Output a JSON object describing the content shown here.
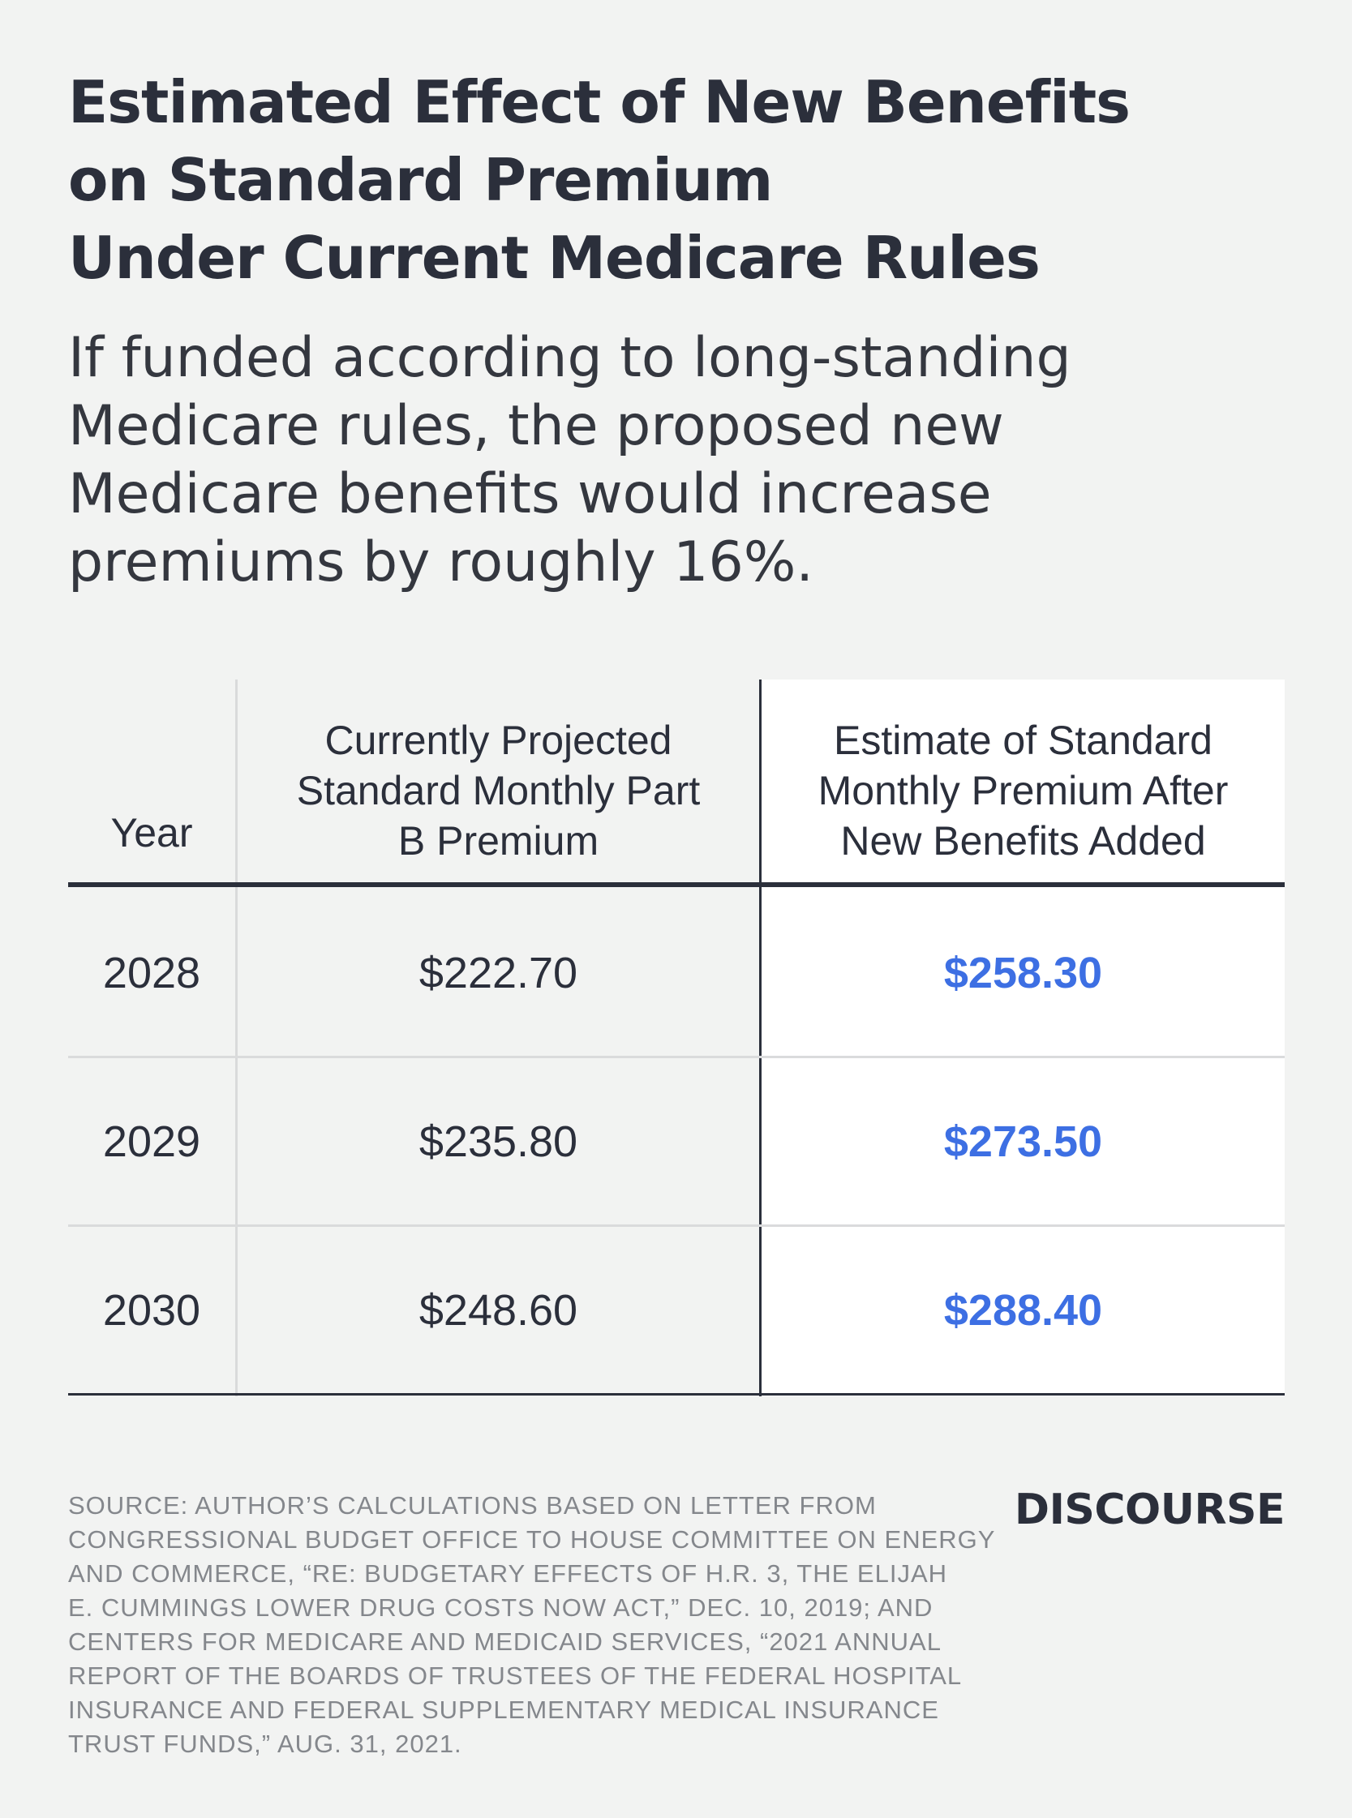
{
  "title_lines": [
    "Estimated Effect of New Benefits",
    "on Standard Premium",
    "Under Current Medicare Rules"
  ],
  "subtitle_lines": [
    "If funded according to long-standing",
    "Medicare rules, the proposed new",
    "Medicare benefits would increase",
    "premiums by roughly 16%."
  ],
  "chart_data": {
    "type": "table",
    "columns": [
      "Year",
      "Currently Projected Standard Monthly Part B Premium",
      "Estimate of Standard Monthly Premium After New Benefits Added"
    ],
    "header_lines": {
      "year": [
        "Year"
      ],
      "current": [
        "Currently Projected",
        "Standard Monthly Part",
        "B Premium"
      ],
      "estimate": [
        "Estimate of Standard",
        "Monthly Premium After",
        "New Benefits Added"
      ]
    },
    "rows": [
      {
        "year": "2028",
        "current": "$222.70",
        "estimate": "$258.30"
      },
      {
        "year": "2029",
        "current": "$235.80",
        "estimate": "$273.50"
      },
      {
        "year": "2030",
        "current": "$248.60",
        "estimate": "$288.40"
      }
    ],
    "values": {
      "years": [
        2028,
        2029,
        2030
      ],
      "current": [
        222.7,
        235.8,
        248.6
      ],
      "estimate": [
        258.3,
        273.5,
        288.4
      ]
    }
  },
  "source_lines": [
    "SOURCE: AUTHOR’S CALCULATIONS BASED ON LETTER FROM",
    "CONGRESSIONAL BUDGET OFFICE TO HOUSE COMMITTEE ON ENERGY",
    "AND COMMERCE, “RE: BUDGETARY EFFECTS OF H.R. 3, THE ELIJAH",
    "E. CUMMINGS LOWER DRUG COSTS NOW ACT,” DEC. 10, 2019; AND",
    "CENTERS FOR MEDICARE AND MEDICAID SERVICES,  “2021 ANNUAL",
    "REPORT OF THE BOARDS OF TRUSTEES OF THE FEDERAL HOSPITAL",
    "INSURANCE AND FEDERAL SUPPLEMENTARY MEDICAL INSURANCE",
    "TRUST FUNDS,” AUG. 31, 2021."
  ],
  "brand": "DISCOURSE",
  "colors": {
    "background": "#f2f3f2",
    "text": "#2b2f3b",
    "highlight_value": "#3d6fe3",
    "source_text": "#84878c"
  }
}
